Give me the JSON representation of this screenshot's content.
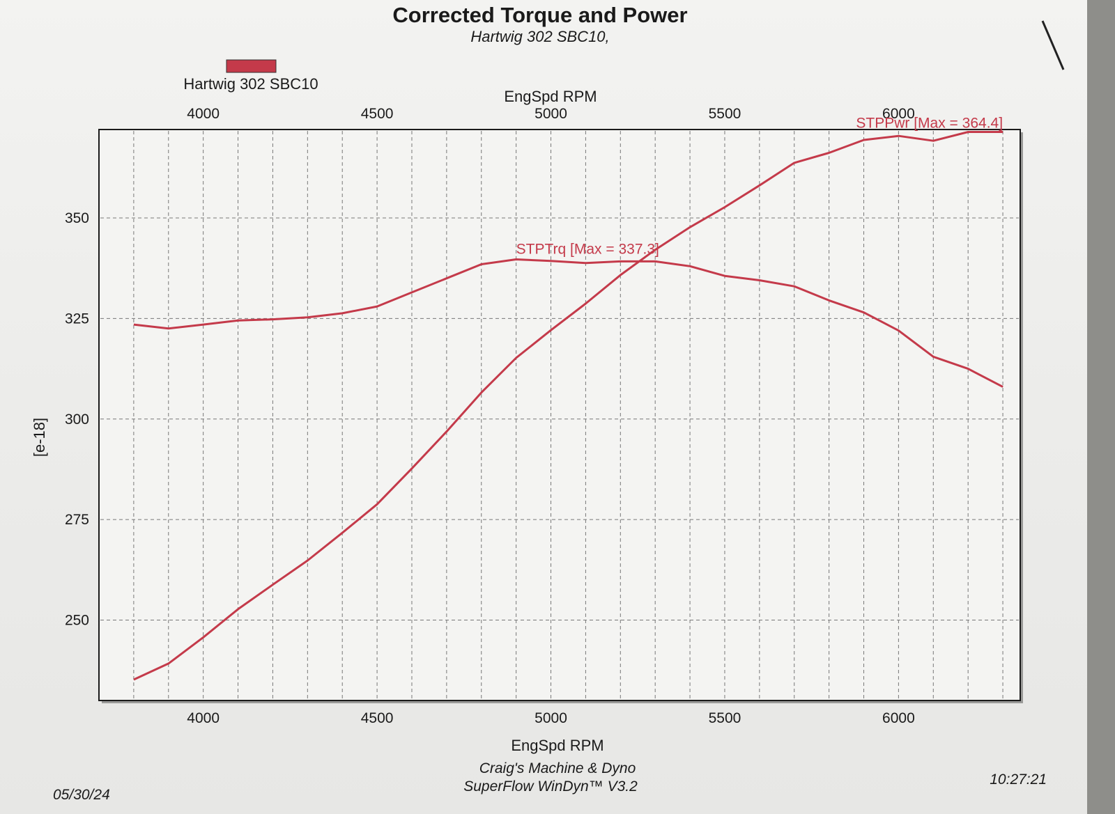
{
  "header": {
    "title": "Corrected Torque and Power",
    "subtitle": "Hartwig 302 SBC10,"
  },
  "legend": {
    "label": "Hartwig 302 SBC10",
    "color": "#c43a4a",
    "placement": "top-left"
  },
  "footer": {
    "date": "05/30/24",
    "shop": "Craig's Machine & Dyno",
    "software": "SuperFlow WinDyn™ V3.2",
    "time": "10:27:21"
  },
  "chart_data": {
    "type": "line",
    "title": "Corrected Torque and Power",
    "xlabel": "EngSpd RPM",
    "ylabel": "[e-18]",
    "xlim": [
      3700,
      6350
    ],
    "ylim": [
      230,
      372
    ],
    "xticks": [
      "4000",
      "4500",
      "5000",
      "5500",
      "6000"
    ],
    "yticks": [
      "250",
      "275",
      "300",
      "325",
      "350"
    ],
    "grid": true,
    "series_color": "#c43a4a",
    "series": [
      {
        "name": "STPTrq [Max = 337.3]",
        "x": [
          3800,
          3900,
          4000,
          4100,
          4200,
          4300,
          4400,
          4500,
          4600,
          4700,
          4800,
          4900,
          5000,
          5100,
          5200,
          5300,
          5400,
          5500,
          5600,
          5700,
          5800,
          5900,
          6000,
          6100,
          6200,
          6300
        ],
        "y": [
          323.5,
          322.5,
          323.5,
          324.5,
          324.8,
          325.3,
          326.3,
          328,
          331.5,
          335,
          338.5,
          339.7,
          339.3,
          338.8,
          339.2,
          339.2,
          338,
          335.6,
          334.5,
          333,
          329.5,
          326.5,
          322,
          315.5,
          312.5,
          308
        ]
      },
      {
        "name": "STPPwr [Max = 364.4]",
        "x": [
          3800,
          3900,
          4000,
          4100,
          4200,
          4300,
          4400,
          4500,
          4600,
          4700,
          4800,
          4900,
          5000,
          5100,
          5200,
          5300,
          5400,
          5500,
          5600,
          5700,
          5800,
          5900,
          6000,
          6100,
          6200,
          6300
        ],
        "y": [
          235.2,
          239.2,
          245.7,
          252.7,
          258.8,
          264.8,
          271.7,
          278.8,
          287.7,
          296.9,
          306.6,
          315.2,
          322.1,
          328.7,
          335.8,
          342.1,
          347.7,
          352.7,
          358.1,
          363.7,
          366.2,
          369.4,
          370.4,
          369.2,
          371.4,
          371.4
        ]
      }
    ]
  }
}
